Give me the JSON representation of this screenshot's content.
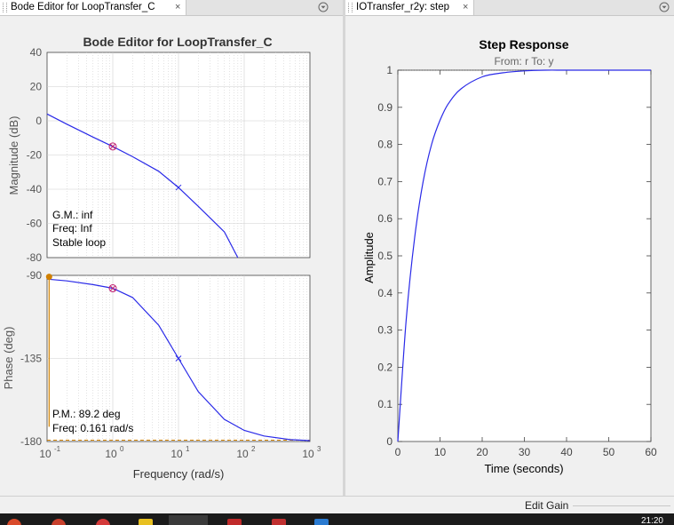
{
  "left_tab": {
    "title": "Bode Editor for LoopTransfer_C",
    "close": "×"
  },
  "right_tab": {
    "title": "IOTransfer_r2y: step",
    "close": "×"
  },
  "bode": {
    "title": "Bode Editor for LoopTransfer_C",
    "magnitude_ylabel": "Magnitude (dB)",
    "phase_ylabel": "Phase (deg)",
    "xlabel": "Frequency (rad/s)",
    "mag_ticks": [
      "40",
      "20",
      "0",
      "-20",
      "-40",
      "-60",
      "-80"
    ],
    "phase_ticks": [
      "-90",
      "-135",
      "-180"
    ],
    "gm_text": "G.M.: inf",
    "gm_freq_text": "Freq: Inf",
    "stable_text": "Stable loop",
    "pm_text": "P.M.: 89.2 deg",
    "pm_freq_text": "Freq: 0.161 rad/s"
  },
  "step": {
    "title": "Step Response",
    "subtitle": "From: r  To: y",
    "ylabel": "Amplitude",
    "xlabel": "Time (seconds)"
  },
  "status": {
    "text": "Edit Gain"
  },
  "taskbar": {
    "clock": "21:20"
  },
  "colors": {
    "curve": "#2a2ae8",
    "marker": "#c02070",
    "pm": "#d08000",
    "grid": "#d0d0d0"
  },
  "chart_data": [
    {
      "type": "line",
      "name": "bode-magnitude",
      "x": [
        0.1,
        0.2,
        0.5,
        1,
        2,
        5,
        10,
        20,
        50,
        80
      ],
      "y": [
        4,
        -2,
        -9.5,
        -15,
        -21,
        -29.5,
        -39,
        -50,
        -65,
        -80
      ],
      "xscale": "log",
      "xlim": [
        0.1,
        1000
      ],
      "ylim": [
        -80,
        40
      ],
      "markers": [
        {
          "kind": "compensator-zero-pole",
          "x": 1,
          "y": -15
        },
        {
          "kind": "pole",
          "x": 10,
          "y": -39
        }
      ],
      "grid": true
    },
    {
      "type": "line",
      "name": "bode-phase",
      "x": [
        0.1,
        0.2,
        0.5,
        1,
        2,
        5,
        10,
        20,
        50,
        100,
        200,
        500,
        1000
      ],
      "y": [
        -92,
        -93,
        -95,
        -97,
        -102,
        -117,
        -135,
        -153,
        -168,
        -174,
        -177,
        -179,
        -179.5
      ],
      "xscale": "log",
      "xlim": [
        0.1,
        1000
      ],
      "ylim": [
        -180,
        -90
      ],
      "xticks": [
        "10",
        "10",
        "10",
        "10",
        "10"
      ],
      "xtick_exponents": [
        "-1",
        "0",
        "1",
        "2",
        "3"
      ],
      "markers": [
        {
          "kind": "compensator-zero-pole",
          "x": 1,
          "y": -97
        },
        {
          "kind": "pole",
          "x": 10,
          "y": -135
        }
      ],
      "phase_margin": {
        "freq": 0.161,
        "value": 89.2
      },
      "grid": true
    },
    {
      "type": "line",
      "name": "step-response",
      "x": [
        0,
        2,
        4,
        6,
        8,
        10,
        12,
        15,
        20,
        25,
        30,
        35,
        40,
        50,
        60
      ],
      "y": [
        0,
        0.33,
        0.55,
        0.7,
        0.8,
        0.865,
        0.91,
        0.95,
        0.982,
        0.993,
        0.998,
        1,
        1,
        1,
        1
      ],
      "xlim": [
        0,
        60
      ],
      "ylim": [
        0,
        1
      ],
      "xticks": [
        "0",
        "10",
        "20",
        "30",
        "40",
        "50",
        "60"
      ],
      "yticks": [
        "0",
        "0.1",
        "0.2",
        "0.3",
        "0.4",
        "0.5",
        "0.6",
        "0.7",
        "0.8",
        "0.9",
        "1"
      ],
      "grid": false
    }
  ]
}
